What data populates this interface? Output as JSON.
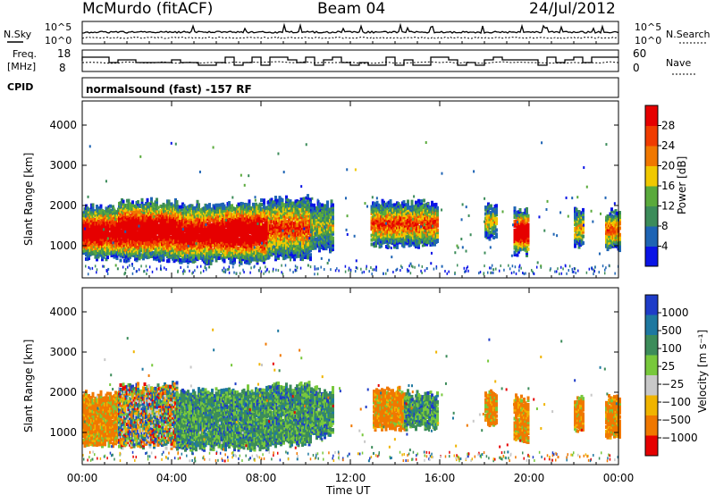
{
  "header": {
    "station": "McMurdo (fitACF)",
    "beam": "Beam 04",
    "date": "24/Jul/2012"
  },
  "panels": {
    "nsky_label": "N.Sky",
    "nsearch_label": "N.Search",
    "freq_label_1": "Freq.",
    "freq_label_2": "[MHz]",
    "nave_label": "Nave",
    "cpid_label": "CPID",
    "cpid_value": "normalsound (fast) -157 RF",
    "noise_ticks_left": [
      "10^5",
      "10^0"
    ],
    "noise_ticks_right": [
      "10^5",
      "10^0"
    ],
    "freq_ticks": [
      "18",
      "8"
    ],
    "nave_ticks": [
      "60",
      "0"
    ]
  },
  "colors": {
    "power_scale": [
      "#0a14e6",
      "#1e64b4",
      "#3c8c5a",
      "#5aaa3c",
      "#f0c800",
      "#f07800",
      "#f03c00",
      "#e60000"
    ],
    "velocity_scale": [
      "#1e3cc8",
      "#1e78a0",
      "#3c8c5a",
      "#78c83c",
      "#c8c8c8",
      "#f0b400",
      "#f07800",
      "#e60000"
    ]
  },
  "chart_data": [
    {
      "type": "heatmap",
      "name": "power",
      "ylabel": "Slant Range [km]",
      "y_ticks": [
        1000,
        2000,
        3000,
        4000
      ],
      "ylim": [
        200,
        4600
      ],
      "xlim": [
        0,
        24
      ],
      "colorbar_label": "Power [dB]",
      "colorbar_ticks": [
        "4",
        "8",
        "12",
        "16",
        "20",
        "24",
        "28"
      ],
      "clusters": [
        {
          "t0": 0.0,
          "t1": 1.6,
          "r0": 700,
          "r1": 1900,
          "core": 0.7
        },
        {
          "t0": 1.6,
          "t1": 4.2,
          "r0": 650,
          "r1": 2050,
          "core": 0.75
        },
        {
          "t0": 4.2,
          "t1": 6.4,
          "r0": 600,
          "r1": 1950,
          "core": 0.7
        },
        {
          "t0": 6.4,
          "t1": 8.3,
          "r0": 600,
          "r1": 2000,
          "core": 0.8
        },
        {
          "t0": 8.3,
          "t1": 10.2,
          "r0": 700,
          "r1": 2100,
          "core": 0.45
        },
        {
          "t0": 10.2,
          "t1": 11.2,
          "r0": 900,
          "r1": 2000,
          "core": 0.2
        },
        {
          "t0": 12.9,
          "t1": 15.9,
          "r0": 1000,
          "r1": 2000,
          "core": 0.45
        },
        {
          "t0": 18.0,
          "t1": 18.5,
          "r0": 1200,
          "r1": 1900,
          "core": 0.3
        },
        {
          "t0": 19.3,
          "t1": 19.9,
          "r0": 800,
          "r1": 1800,
          "core": 0.75
        },
        {
          "t0": 22.0,
          "t1": 22.4,
          "r0": 1000,
          "r1": 1800,
          "core": 0.3
        },
        {
          "t0": 23.4,
          "t1": 24.0,
          "r0": 900,
          "r1": 1800,
          "core": 0.4
        }
      ]
    },
    {
      "type": "heatmap",
      "name": "velocity",
      "ylabel": "Slant Range [km]",
      "y_ticks": [
        1000,
        2000,
        3000,
        4000
      ],
      "ylim": [
        200,
        4600
      ],
      "xlim": [
        0,
        24
      ],
      "xlabel": "Time UT",
      "x_ticks": [
        "00:00",
        "04:00",
        "08:00",
        "12:00",
        "16:00",
        "20:00",
        "00:00"
      ],
      "colorbar_label": "Velocity [m s⁻¹]",
      "colorbar_ticks": [
        "1000",
        "500",
        "100",
        "25",
        "−25",
        "−100",
        "−500",
        "−1000"
      ],
      "clusters": [
        {
          "t0": 0.0,
          "t1": 1.6,
          "r0": 700,
          "r1": 1900,
          "mix": "orange"
        },
        {
          "t0": 1.6,
          "t1": 4.2,
          "r0": 650,
          "r1": 2100,
          "mix": "mixed"
        },
        {
          "t0": 4.2,
          "t1": 6.4,
          "r0": 600,
          "r1": 1950,
          "mix": "green"
        },
        {
          "t0": 6.4,
          "t1": 8.3,
          "r0": 600,
          "r1": 2000,
          "mix": "green"
        },
        {
          "t0": 8.3,
          "t1": 10.2,
          "r0": 700,
          "r1": 2100,
          "mix": "green"
        },
        {
          "t0": 10.2,
          "t1": 11.2,
          "r0": 900,
          "r1": 2000,
          "mix": "green"
        },
        {
          "t0": 13.0,
          "t1": 14.4,
          "r0": 1100,
          "r1": 2000,
          "mix": "orange"
        },
        {
          "t0": 14.4,
          "t1": 15.9,
          "r0": 1100,
          "r1": 1900,
          "mix": "green"
        },
        {
          "t0": 18.0,
          "t1": 18.5,
          "r0": 1200,
          "r1": 1900,
          "mix": "orange"
        },
        {
          "t0": 19.3,
          "t1": 19.9,
          "r0": 800,
          "r1": 1800,
          "mix": "orange"
        },
        {
          "t0": 22.0,
          "t1": 22.4,
          "r0": 1000,
          "r1": 1800,
          "mix": "orange"
        },
        {
          "t0": 23.4,
          "t1": 24.0,
          "r0": 900,
          "r1": 1800,
          "mix": "orange"
        }
      ]
    }
  ]
}
